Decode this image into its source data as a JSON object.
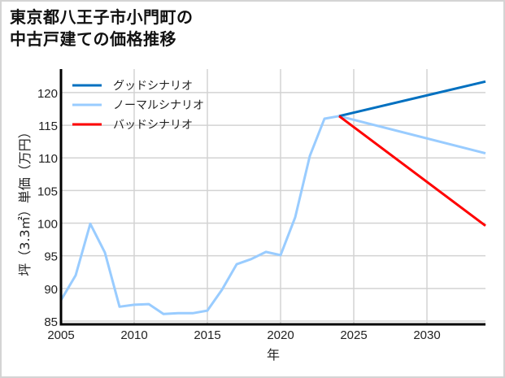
{
  "title_lines": [
    "東京都八王子市小門町の",
    "中古戸建ての価格推移"
  ],
  "chart_data": {
    "type": "line",
    "title": "東京都八王子市小門町の中古戸建ての価格推移",
    "xlabel": "年",
    "ylabel": "坪（3.3㎡）単価（万円）",
    "xlim": [
      2005,
      2034
    ],
    "ylim": [
      84.5,
      123.6
    ],
    "xticks": [
      2005,
      2010,
      2015,
      2020,
      2025,
      2030
    ],
    "yticks": [
      85,
      90,
      95,
      100,
      105,
      110,
      115,
      120
    ],
    "grid": true,
    "legend_position": "upper left",
    "series": [
      {
        "name": "グッドシナリオ",
        "color": "#0070c0",
        "x": [
          2024,
          2034
        ],
        "values": [
          116.4,
          121.7
        ]
      },
      {
        "name": "ノーマルシナリオ",
        "color": "#99ccff",
        "x": [
          2005,
          2006,
          2007,
          2008,
          2009,
          2010,
          2011,
          2012,
          2013,
          2014,
          2015,
          2016,
          2017,
          2018,
          2019,
          2020,
          2021,
          2022,
          2023,
          2024,
          2034
        ],
        "values": [
          88.2,
          92.0,
          99.9,
          95.5,
          87.2,
          87.5,
          87.6,
          86.1,
          86.2,
          86.2,
          86.6,
          89.8,
          93.7,
          94.5,
          95.6,
          95.1,
          100.9,
          110.3,
          116.0,
          116.4,
          110.7
        ]
      },
      {
        "name": "バッドシナリオ",
        "color": "#ff0000",
        "x": [
          2024,
          2034
        ],
        "values": [
          116.4,
          99.6
        ]
      }
    ]
  }
}
